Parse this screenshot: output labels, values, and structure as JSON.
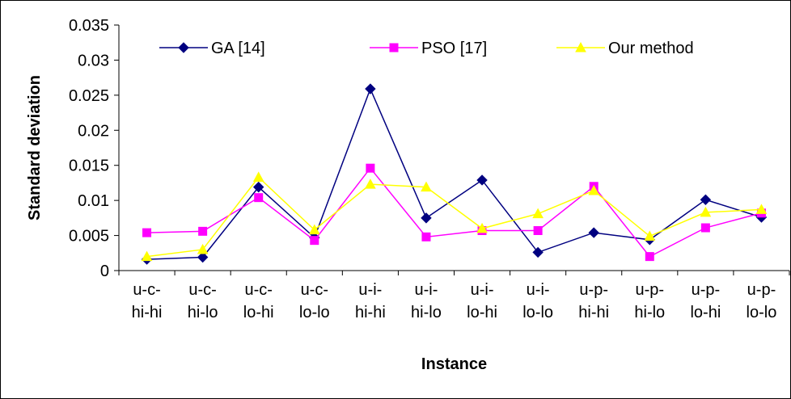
{
  "chart_data": {
    "type": "line",
    "title": "",
    "xlabel": "Instance",
    "ylabel": "Standard deviation",
    "ylim": [
      0,
      0.035
    ],
    "yticks": [
      "0",
      "0.005",
      "0.01",
      "0.015",
      "0.02",
      "0.025",
      "0.03",
      "0.035"
    ],
    "ytick_values": [
      0,
      0.005,
      0.01,
      0.015,
      0.02,
      0.025,
      0.03,
      0.035
    ],
    "grid": false,
    "legend": "top",
    "categories": [
      [
        "u-c-",
        "hi-hi"
      ],
      [
        "u-c-",
        "hi-lo"
      ],
      [
        "u-c-",
        "lo-hi"
      ],
      [
        "u-c-",
        "lo-lo"
      ],
      [
        "u-i-",
        "hi-hi"
      ],
      [
        "u-i-",
        "hi-lo"
      ],
      [
        "u-i-",
        "lo-hi"
      ],
      [
        "u-i-",
        "lo-lo"
      ],
      [
        "u-p-",
        "hi-hi"
      ],
      [
        "u-p-",
        "hi-lo"
      ],
      [
        "u-p-",
        "lo-hi"
      ],
      [
        "u-p-",
        "lo-lo"
      ]
    ],
    "series": [
      {
        "name": "GA [14]",
        "color": "#000080",
        "marker": "diamond",
        "values": [
          0.0016,
          0.0019,
          0.0119,
          0.0047,
          0.0259,
          0.0075,
          0.0129,
          0.0026,
          0.0054,
          0.0044,
          0.0101,
          0.0076
        ]
      },
      {
        "name": "PSO [17]",
        "color": "#FF00FF",
        "marker": "square",
        "values": [
          0.0054,
          0.0056,
          0.0104,
          0.0043,
          0.0146,
          0.0048,
          0.0057,
          0.0057,
          0.012,
          0.002,
          0.0061,
          0.0082
        ]
      },
      {
        "name": "Our method",
        "color": "#FFFF00",
        "marker": "triangle",
        "values": [
          0.002,
          0.003,
          0.0133,
          0.0058,
          0.0123,
          0.0119,
          0.006,
          0.0081,
          0.0114,
          0.0049,
          0.0083,
          0.0087
        ]
      }
    ]
  }
}
